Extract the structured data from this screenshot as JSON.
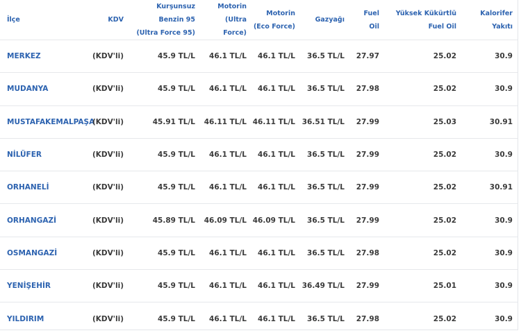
{
  "table": {
    "columns": [
      [
        "İlçe"
      ],
      [
        "KDV"
      ],
      [
        "Kurşunsuz",
        "Benzin 95",
        "(Ultra Force 95)"
      ],
      [
        "Motorin",
        "(Ultra",
        "Force)"
      ],
      [
        "Motorin",
        "(Eco Force)"
      ],
      [
        "Gazyağı"
      ],
      [
        "Fuel",
        "Oil"
      ],
      [
        "Yüksek Kükürtlü",
        "Fuel Oil"
      ],
      [
        "Kalorifer",
        "Yakıtı"
      ]
    ],
    "rows": [
      [
        "MERKEZ",
        "(KDV'li)",
        "45.9 TL/L",
        "46.1 TL/L",
        "46.1 TL/L",
        "36.5 TL/L",
        "27.97",
        "25.02",
        "30.9"
      ],
      [
        "MUDANYA",
        "(KDV'li)",
        "45.9 TL/L",
        "46.1 TL/L",
        "46.1 TL/L",
        "36.5 TL/L",
        "27.98",
        "25.02",
        "30.9"
      ],
      [
        "MUSTAFAKEMALPAŞA",
        "(KDV'li)",
        "45.91 TL/L",
        "46.11 TL/L",
        "46.11 TL/L",
        "36.51 TL/L",
        "27.99",
        "25.03",
        "30.91"
      ],
      [
        "NİLÜFER",
        "(KDV'li)",
        "45.9 TL/L",
        "46.1 TL/L",
        "46.1 TL/L",
        "36.5 TL/L",
        "27.99",
        "25.02",
        "30.9"
      ],
      [
        "ORHANELİ",
        "(KDV'li)",
        "45.9 TL/L",
        "46.1 TL/L",
        "46.1 TL/L",
        "36.5 TL/L",
        "27.99",
        "25.02",
        "30.91"
      ],
      [
        "ORHANGAZİ",
        "(KDV'li)",
        "45.89 TL/L",
        "46.09 TL/L",
        "46.09 TL/L",
        "36.5 TL/L",
        "27.99",
        "25.02",
        "30.9"
      ],
      [
        "OSMANGAZİ",
        "(KDV'li)",
        "45.9 TL/L",
        "46.1 TL/L",
        "46.1 TL/L",
        "36.5 TL/L",
        "27.98",
        "25.02",
        "30.9"
      ],
      [
        "YENİŞEHİR",
        "(KDV'li)",
        "45.9 TL/L",
        "46.1 TL/L",
        "46.1 TL/L",
        "36.49 TL/L",
        "27.99",
        "25.01",
        "30.9"
      ],
      [
        "YILDIRIM",
        "(KDV'li)",
        "45.9 TL/L",
        "46.1 TL/L",
        "46.1 TL/L",
        "36.5 TL/L",
        "27.98",
        "25.02",
        "30.9"
      ]
    ]
  }
}
